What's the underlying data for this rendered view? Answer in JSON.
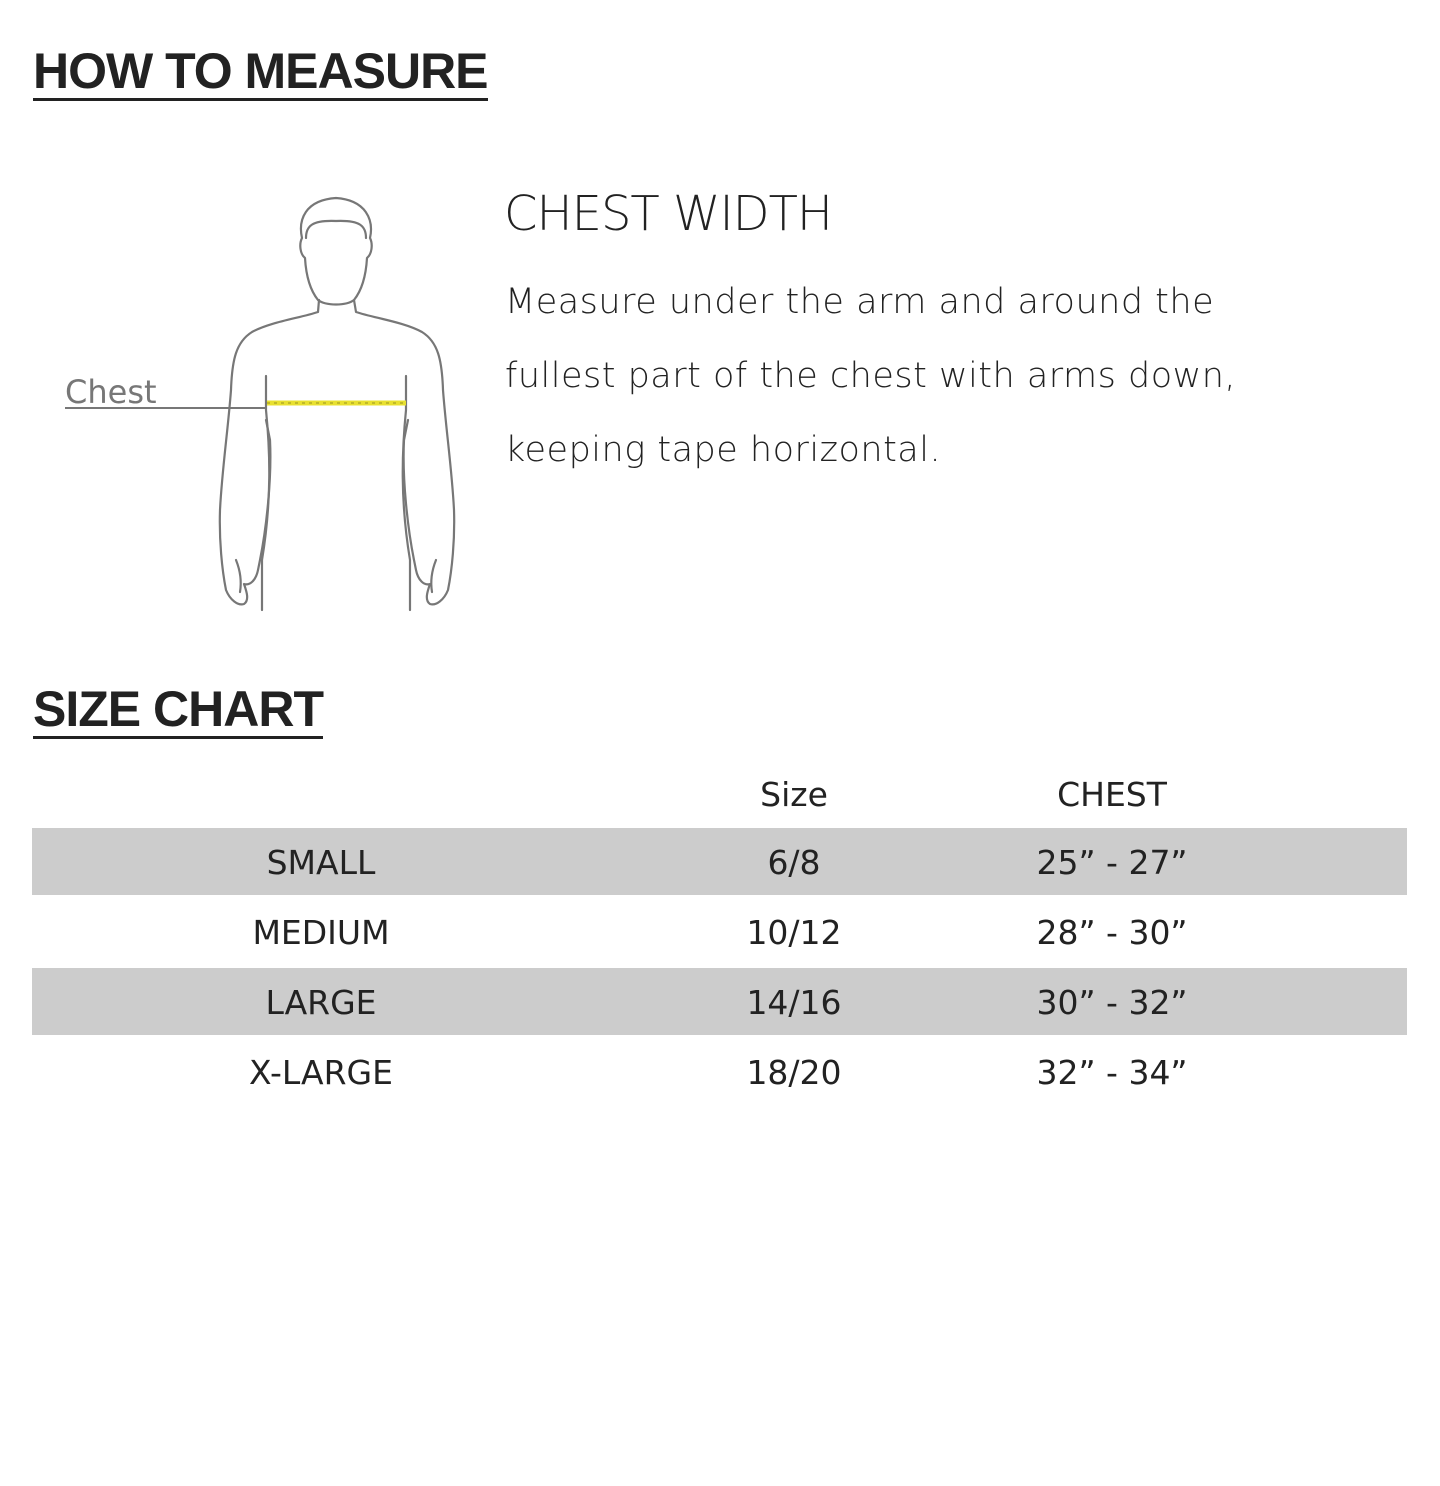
{
  "how_to_measure": {
    "heading": "HOW TO MEASURE",
    "figure_label": "Chest",
    "tape_color": "#e8e030",
    "title": "CHEST WIDTH",
    "description": "Measure under the arm and around the fullest part of the chest with arms down, keeping tape horizontal."
  },
  "size_chart": {
    "heading": "SIZE CHART",
    "columns": [
      "",
      "Size",
      "CHEST"
    ],
    "rows": [
      [
        "SMALL",
        "6/8",
        "25” - 27”"
      ],
      [
        "MEDIUM",
        "10/12",
        "28” - 30”"
      ],
      [
        "LARGE",
        "14/16",
        "30” - 32”"
      ],
      [
        "X-LARGE",
        "18/20",
        "32” - 34”"
      ]
    ],
    "stripe_color": "#cccccc"
  }
}
